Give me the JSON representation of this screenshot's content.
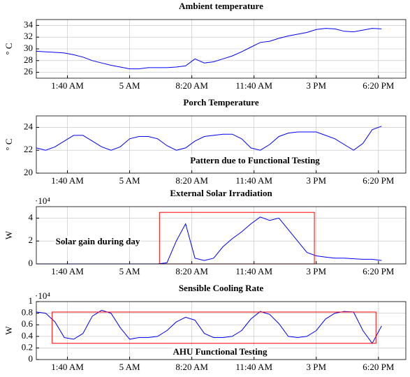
{
  "chart_data": [
    {
      "type": "line",
      "title": "Ambient temperature",
      "y_label": "° C",
      "x": [
        0,
        0.5,
        1,
        1.5,
        2,
        2.5,
        3,
        3.5,
        4,
        4.5,
        5,
        5.5,
        6,
        6.5,
        7,
        7.5,
        8,
        8.5,
        9,
        9.5,
        10,
        10.5,
        11,
        11.5,
        12,
        12.5,
        13,
        13.5,
        14,
        14.5,
        15,
        15.5,
        16,
        16.5,
        17,
        17.5,
        18,
        18.5
      ],
      "series": [
        {
          "color": "#0000ff",
          "values": [
            29.6,
            29.5,
            29.4,
            29.3,
            29.0,
            28.6,
            28.0,
            27.6,
            27.2,
            26.9,
            26.6,
            26.6,
            26.8,
            26.8,
            26.8,
            26.9,
            27.1,
            28.3,
            27.6,
            27.8,
            28.3,
            28.8,
            29.5,
            30.3,
            31.1,
            31.3,
            31.8,
            32.2,
            32.5,
            32.8,
            33.3,
            33.5,
            33.4,
            33.0,
            32.9,
            33.2,
            33.5,
            33.4
          ]
        }
      ],
      "xlim": [
        0,
        19.8
      ],
      "xticks": [
        {
          "value": 1.667,
          "label": "1:40 AM"
        },
        {
          "value": 5,
          "label": "5 AM"
        },
        {
          "value": 8.333,
          "label": "8:20 AM"
        },
        {
          "value": 11.667,
          "label": "11:40 AM"
        },
        {
          "value": 15,
          "label": "3 PM"
        },
        {
          "value": 18.333,
          "label": "6:20 PM"
        }
      ],
      "ylim": [
        25,
        35
      ],
      "yticks": [
        26,
        28,
        30,
        32,
        34
      ],
      "grid": true
    },
    {
      "type": "line",
      "title": "Porch Temperature",
      "y_label": "° C",
      "annotation": "Pattern due to Functional Testing",
      "x": [
        0,
        0.5,
        1,
        1.5,
        2,
        2.5,
        3,
        3.5,
        4,
        4.5,
        5,
        5.5,
        6,
        6.5,
        7,
        7.5,
        8,
        8.5,
        9,
        9.5,
        10,
        10.5,
        11,
        11.5,
        12,
        12.5,
        13,
        13.5,
        14,
        14.5,
        15,
        15.5,
        16,
        16.5,
        17,
        17.5,
        18,
        18.5
      ],
      "series": [
        {
          "color": "#0000ff",
          "values": [
            22.2,
            22.0,
            22.3,
            22.8,
            23.3,
            23.3,
            22.8,
            22.3,
            22.0,
            22.3,
            23.0,
            23.2,
            23.2,
            23.0,
            22.4,
            22.0,
            22.2,
            22.8,
            23.2,
            23.3,
            23.4,
            23.4,
            23.0,
            22.2,
            22.0,
            22.5,
            23.2,
            23.5,
            23.6,
            23.6,
            23.6,
            23.3,
            23.0,
            22.5,
            22.0,
            22.6,
            23.8,
            24.1
          ]
        }
      ],
      "xlim": [
        0,
        19.8
      ],
      "xticks": [
        {
          "value": 1.667,
          "label": "1:40 AM"
        },
        {
          "value": 5,
          "label": "5 AM"
        },
        {
          "value": 8.333,
          "label": "8:20 AM"
        },
        {
          "value": 11.667,
          "label": "11:40 AM"
        },
        {
          "value": 15,
          "label": "3 PM"
        },
        {
          "value": 18.333,
          "label": "6:20 PM"
        }
      ],
      "ylim": [
        20,
        25
      ],
      "yticks": [
        20,
        22,
        24
      ],
      "grid": true
    },
    {
      "type": "line",
      "title": "External Solar Irradiation",
      "y_label": "W",
      "y_multiplier": "·10⁴",
      "annotation": "Solar gain during day",
      "x": [
        0,
        0.5,
        1,
        1.5,
        2,
        2.5,
        3,
        3.5,
        4,
        4.5,
        5,
        5.5,
        6,
        6.5,
        7,
        7.5,
        8,
        8.5,
        9,
        9.5,
        10,
        10.5,
        11,
        11.5,
        12,
        12.5,
        13,
        13.5,
        14,
        14.5,
        15,
        15.5,
        16,
        16.5,
        17,
        17.5,
        18,
        18.5
      ],
      "series": [
        {
          "color": "#0000ff",
          "values": [
            0,
            0,
            0,
            0,
            0,
            0,
            0,
            0,
            0,
            0,
            0,
            0,
            0,
            0,
            1000,
            20000,
            35000,
            5000,
            3000,
            5000,
            15000,
            22000,
            28000,
            35000,
            41000,
            38000,
            40000,
            30000,
            20000,
            10000,
            7000,
            6000,
            5000,
            5000,
            4500,
            4000,
            4000,
            3000
          ]
        }
      ],
      "highlight": {
        "color": "#ff0000",
        "x": [
          6.6,
          14.9
        ],
        "y": [
          0,
          45000
        ]
      },
      "xlim": [
        0,
        19.8
      ],
      "xticks": [
        {
          "value": 1.667,
          "label": "1:40 AM"
        },
        {
          "value": 5,
          "label": "5 AM"
        },
        {
          "value": 8.333,
          "label": "8:20 AM"
        },
        {
          "value": 11.667,
          "label": "11:40 AM"
        },
        {
          "value": 15,
          "label": "3 PM"
        },
        {
          "value": 18.333,
          "label": "6:20 PM"
        }
      ],
      "ylim": [
        0,
        50000
      ],
      "yticks": [
        {
          "value": 0,
          "label": "0"
        },
        {
          "value": 20000,
          "label": "2"
        },
        {
          "value": 40000,
          "label": "4"
        }
      ],
      "grid": true
    },
    {
      "type": "line",
      "title": "Sensible Cooling Rate",
      "y_label": "W",
      "y_multiplier": "·10⁴",
      "annotation": "AHU Functional Testing",
      "x": [
        0,
        0.5,
        1,
        1.5,
        2,
        2.5,
        3,
        3.5,
        4,
        4.5,
        5,
        5.5,
        6,
        6.5,
        7,
        7.5,
        8,
        8.5,
        9,
        9.5,
        10,
        10.5,
        11,
        11.5,
        12,
        12.5,
        13,
        13.5,
        14,
        14.5,
        15,
        15.5,
        16,
        16.5,
        17,
        17.5,
        18,
        18.5
      ],
      "series": [
        {
          "color": "#0000ff",
          "values": [
            8200,
            8000,
            6500,
            3800,
            3500,
            4500,
            7500,
            8500,
            8000,
            5500,
            3500,
            3800,
            3800,
            4000,
            5000,
            6500,
            7300,
            6800,
            4500,
            3800,
            3800,
            4000,
            5000,
            7000,
            8300,
            7800,
            6200,
            4000,
            3800,
            4000,
            5000,
            7000,
            8000,
            8300,
            8200,
            5000,
            2800,
            5800
          ]
        }
      ],
      "highlight": {
        "color": "#ff0000",
        "x": [
          0.85,
          18.2
        ],
        "y": [
          2800,
          8200
        ]
      },
      "xlim": [
        0,
        19.8
      ],
      "xticks": [
        {
          "value": 1.667,
          "label": "1:40 AM"
        },
        {
          "value": 5,
          "label": "5 AM"
        },
        {
          "value": 8.333,
          "label": "8:20 AM"
        },
        {
          "value": 11.667,
          "label": "11:40 AM"
        },
        {
          "value": 15,
          "label": "3 PM"
        },
        {
          "value": 18.333,
          "label": "6:20 PM"
        }
      ],
      "ylim": [
        0,
        10000
      ],
      "yticks": [
        {
          "value": 0,
          "label": "0"
        },
        {
          "value": 2000,
          "label": "0.2"
        },
        {
          "value": 4000,
          "label": "0.4"
        },
        {
          "value": 6000,
          "label": "0.6"
        },
        {
          "value": 8000,
          "label": "0.8"
        },
        {
          "value": 10000,
          "label": "1"
        }
      ],
      "grid": true
    }
  ]
}
